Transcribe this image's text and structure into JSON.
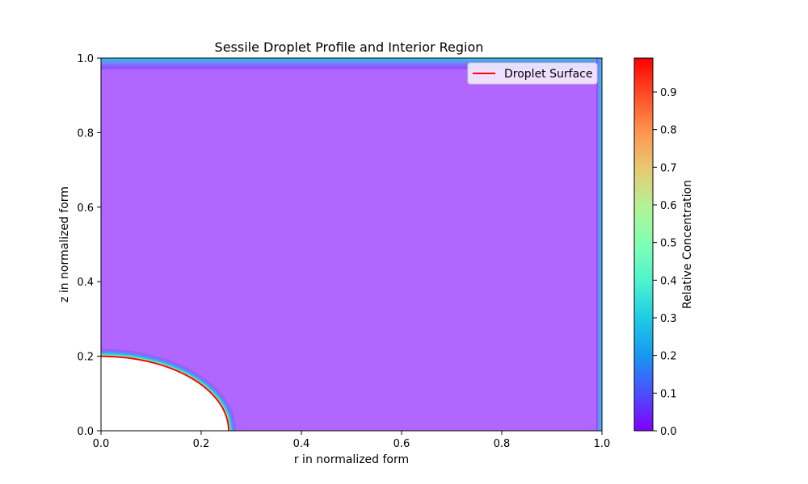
{
  "chart_data": {
    "type": "heatmap",
    "title": "Sessile Droplet Profile and Interior Region",
    "xlabel": "r in normalized form",
    "ylabel": "z in normalized form",
    "xlim": [
      0.0,
      1.0
    ],
    "ylim": [
      0.0,
      1.0
    ],
    "x_ticks": [
      0.0,
      0.2,
      0.4,
      0.6,
      0.8,
      1.0
    ],
    "x_tick_labels": [
      "0.0",
      "0.2",
      "0.4",
      "0.6",
      "0.8",
      "1.0"
    ],
    "y_ticks": [
      0.0,
      0.2,
      0.4,
      0.6,
      0.8,
      1.0
    ],
    "y_tick_labels": [
      "0.0",
      "0.2",
      "0.4",
      "0.6",
      "0.8",
      "1.0"
    ],
    "grid": false,
    "legend": {
      "placement": "upper right",
      "entries": [
        {
          "label": "Droplet Surface",
          "color": "#ff0000"
        }
      ]
    },
    "series": [
      {
        "name": "Droplet Surface",
        "kind": "line",
        "color": "#ff0000",
        "radius_r": 0.255,
        "height_z": 0.2
      }
    ],
    "field": {
      "interior_value": 0.0,
      "boundary_value_at_droplet": 1.0,
      "background_color": "#b066ff"
    },
    "colorbar": {
      "label": "Relative Concentration",
      "range": [
        0.0,
        0.99
      ],
      "ticks": [
        0.0,
        0.1,
        0.2,
        0.3,
        0.4,
        0.5,
        0.6,
        0.7,
        0.8,
        0.9
      ],
      "tick_labels": [
        "0.0",
        "0.1",
        "0.2",
        "0.3",
        "0.4",
        "0.5",
        "0.6",
        "0.7",
        "0.8",
        "0.9"
      ],
      "colormap": "rainbow"
    }
  }
}
